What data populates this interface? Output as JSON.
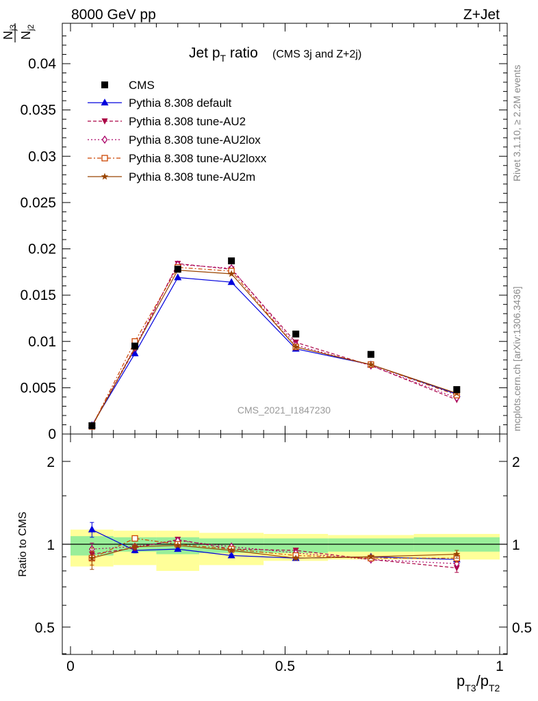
{
  "header": {
    "left": "8000 GeV pp",
    "right": "Z+Jet"
  },
  "side_text": {
    "rivet": "Rivet 3.1.10, ≥ 2.2M events",
    "mcplots": "mcplots.cern.ch [arXiv:1306.3436]"
  },
  "chart_data": {
    "type": "line",
    "title": "Jet p_T ratio",
    "title_sub": "(CMS 3j and Z+2j)",
    "analysis_id": "CMS_2021_I1847230",
    "xlabel": "p_T3/p_T2",
    "ylabel_main": "N_j3 / N_j2",
    "ylabel_ratio": "Ratio to CMS",
    "xlim": [
      0,
      1
    ],
    "ylim_main": [
      0,
      0.044
    ],
    "ylim_ratio": [
      0.35,
      2.3
    ],
    "x_ticks": [
      "0",
      "0.5",
      "1"
    ],
    "y_ticks_main": [
      "0",
      "0.005",
      "0.01",
      "0.015",
      "0.02",
      "0.025",
      "0.03",
      "0.035",
      "0.04"
    ],
    "y_ticks_ratio": [
      "0.5",
      "1",
      "2"
    ],
    "x": [
      0.05,
      0.15,
      0.25,
      0.375,
      0.525,
      0.7,
      0.9
    ],
    "bins": [
      [
        0.0,
        0.1
      ],
      [
        0.1,
        0.2
      ],
      [
        0.2,
        0.3
      ],
      [
        0.3,
        0.45
      ],
      [
        0.45,
        0.6
      ],
      [
        0.6,
        0.8
      ],
      [
        0.8,
        1.0
      ]
    ],
    "cms": {
      "name": "CMS",
      "values": [
        0.0009,
        0.0095,
        0.0178,
        0.0187,
        0.0108,
        0.0086,
        0.0048
      ]
    },
    "bands": {
      "stat_lo": [
        0.91,
        0.94,
        0.92,
        0.93,
        0.93,
        0.94,
        0.94
      ],
      "stat_hi": [
        1.07,
        1.06,
        1.06,
        1.05,
        1.05,
        1.05,
        1.06
      ],
      "total_lo": [
        0.83,
        0.84,
        0.8,
        0.84,
        0.87,
        0.88,
        0.88
      ],
      "total_hi": [
        1.13,
        1.12,
        1.12,
        1.1,
        1.09,
        1.08,
        1.09
      ]
    },
    "series": [
      {
        "name": "Pythia 8.308 default",
        "color": "#0000dd",
        "dash": "",
        "marker": "triangle-up",
        "values": [
          0.00095,
          0.0087,
          0.0169,
          0.0164,
          0.0092,
          0.0075,
          0.0043
        ],
        "ratio": [
          1.13,
          0.95,
          0.96,
          0.91,
          0.89,
          0.9,
          0.88
        ],
        "ratio_err": [
          0.07,
          0.02,
          0.01,
          0.01,
          0.01,
          0.01,
          0.02
        ]
      },
      {
        "name": "Pythia 8.308 tune-AU2",
        "color": "#aa0044",
        "dash": "5,3",
        "marker": "triangle-down",
        "values": [
          0.00085,
          0.0092,
          0.0184,
          0.0178,
          0.0099,
          0.0074,
          0.0037
        ],
        "ratio": [
          0.92,
          0.97,
          1.04,
          0.96,
          0.95,
          0.88,
          0.82
        ],
        "ratio_err": [
          0.05,
          0.02,
          0.01,
          0.01,
          0.01,
          0.01,
          0.03
        ]
      },
      {
        "name": "Pythia 8.308 tune-AU2lox",
        "color": "#aa0066",
        "dash": "2,3",
        "marker": "diamond-open",
        "values": [
          0.00088,
          0.0094,
          0.0183,
          0.0179,
          0.0096,
          0.0074,
          0.0039
        ],
        "ratio": [
          0.96,
          0.98,
          1.03,
          0.98,
          0.93,
          0.88,
          0.85
        ],
        "ratio_err": [
          0.05,
          0.02,
          0.01,
          0.01,
          0.01,
          0.01,
          0.03
        ]
      },
      {
        "name": "Pythia 8.308 tune-AU2loxx",
        "color": "#cc4400",
        "dash": "6,3,2,3",
        "marker": "square-open",
        "values": [
          0.00082,
          0.01,
          0.018,
          0.0176,
          0.0094,
          0.0075,
          0.0042
        ],
        "ratio": [
          0.89,
          1.05,
          1.0,
          0.96,
          0.91,
          0.89,
          0.89
        ],
        "ratio_err": [
          0.05,
          0.02,
          0.01,
          0.01,
          0.01,
          0.01,
          0.03
        ]
      },
      {
        "name": "Pythia 8.308 tune-AU2m",
        "color": "#994400",
        "dash": "",
        "marker": "star",
        "values": [
          0.00082,
          0.0093,
          0.0177,
          0.0173,
          0.0094,
          0.0075,
          0.0044
        ],
        "ratio": [
          0.89,
          0.98,
          0.99,
          0.95,
          0.89,
          0.9,
          0.92
        ],
        "ratio_err": [
          0.08,
          0.02,
          0.01,
          0.01,
          0.01,
          0.01,
          0.03
        ]
      }
    ]
  }
}
